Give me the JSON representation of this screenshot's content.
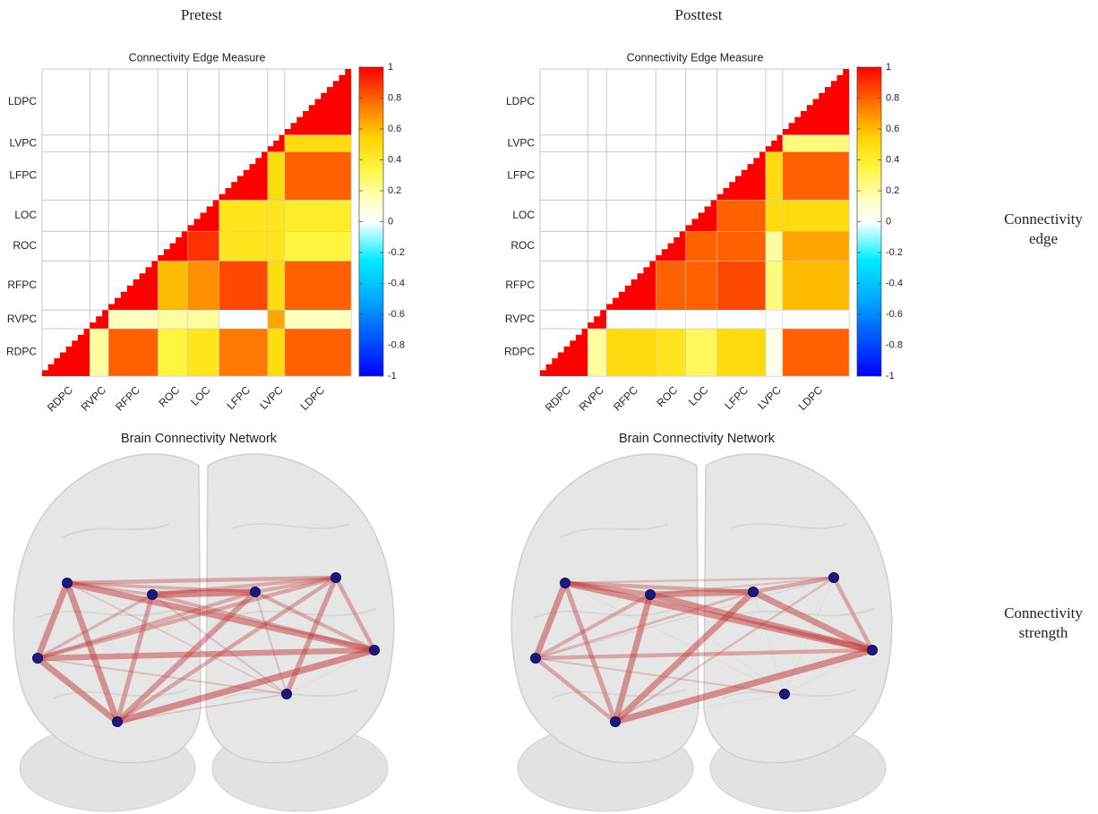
{
  "column_titles": [
    "Pretest",
    "Posttest"
  ],
  "row_labels": [
    "Connectivity edge",
    "Connectivity strength"
  ],
  "chart_data": [
    {
      "type": "heatmap",
      "title": "Connectivity Edge Measure",
      "network_title": "Brain Connectivity Network",
      "rows": [
        "LDPC",
        "LVPC",
        "LFPC",
        "LOC",
        "ROC",
        "RFPC",
        "RVPC",
        "RDPC"
      ],
      "columns": [
        "RDPC",
        "RVPC",
        "RFPC",
        "ROC",
        "LOC",
        "LFPC",
        "LVPC",
        "LDPC"
      ],
      "values": [
        [
          null,
          null,
          null,
          null,
          null,
          null,
          null,
          1
        ],
        [
          null,
          null,
          null,
          null,
          null,
          null,
          1,
          0.5
        ],
        [
          null,
          null,
          null,
          null,
          null,
          1,
          0.5,
          0.8
        ],
        [
          null,
          null,
          null,
          null,
          1,
          0.45,
          0.45,
          0.4
        ],
        [
          null,
          null,
          null,
          1,
          0.9,
          0.45,
          0.45,
          0.35
        ],
        [
          null,
          null,
          1,
          0.6,
          0.7,
          0.85,
          0.5,
          0.8
        ],
        [
          null,
          1,
          0.15,
          0.2,
          0.2,
          0,
          0.65,
          0.15
        ],
        [
          1,
          0.2,
          0.8,
          0.35,
          0.45,
          0.75,
          0.5,
          0.8
        ]
      ],
      "clim": [
        -1,
        1
      ],
      "cticks": [
        -1,
        -0.8,
        -0.6,
        -0.4,
        -0.2,
        0,
        0.2,
        0.4,
        0.6,
        0.8,
        1
      ]
    },
    {
      "type": "heatmap",
      "title": "Connectivity Edge Measure",
      "network_title": "Brain Connectivity Network",
      "rows": [
        "LDPC",
        "LVPC",
        "LFPC",
        "LOC",
        "ROC",
        "RFPC",
        "RVPC",
        "RDPC"
      ],
      "columns": [
        "RDPC",
        "RVPC",
        "RFPC",
        "ROC",
        "LOC",
        "LFPC",
        "LVPC",
        "LDPC"
      ],
      "values": [
        [
          null,
          null,
          null,
          null,
          null,
          null,
          null,
          1
        ],
        [
          null,
          null,
          null,
          null,
          null,
          null,
          1,
          0.25
        ],
        [
          null,
          null,
          null,
          null,
          null,
          1,
          0.5,
          0.8
        ],
        [
          null,
          null,
          null,
          null,
          1,
          0.8,
          0.5,
          0.5
        ],
        [
          null,
          null,
          null,
          1,
          0.8,
          0.8,
          0.2,
          0.65
        ],
        [
          null,
          null,
          1,
          0.8,
          0.8,
          0.85,
          0.25,
          0.6
        ],
        [
          null,
          1,
          0,
          0,
          0,
          0,
          0,
          0
        ],
        [
          1,
          0.2,
          0.5,
          0.45,
          0.3,
          0.5,
          0.05,
          0.8
        ]
      ],
      "clim": [
        -1,
        1
      ],
      "cticks": [
        -1,
        -0.8,
        -0.6,
        -0.4,
        -0.2,
        0,
        0.2,
        0.4,
        0.6,
        0.8,
        1
      ]
    }
  ]
}
